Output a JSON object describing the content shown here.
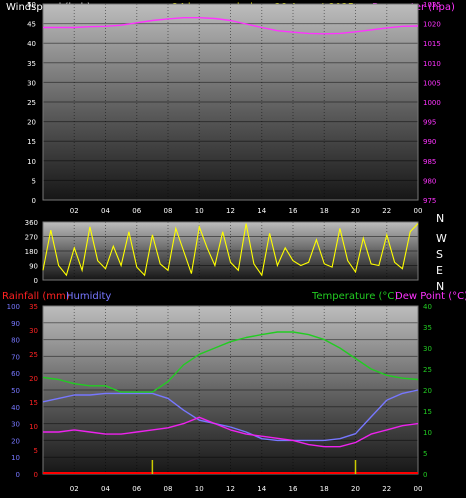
{
  "header": {
    "windspeed_label": "Windspeed (kph)",
    "title": "24 hour graph day : 28 August 2025",
    "barometer_label": "Barometer (hpa)"
  },
  "lower_header": {
    "rainfall_label": "Rainfall (mm)",
    "humidity_label": "Humidity",
    "temperature_label": "Temperature (°C)",
    "dewpoint_label": "Dew Point (°C)"
  },
  "compass": [
    "N",
    "W",
    "S",
    "E",
    "N"
  ],
  "colors": {
    "windspeed": "#ffffff",
    "barometer": "#ff33ff",
    "direction": "#ffff00",
    "rainfall": "#ff0000",
    "humidity": "#7777ff",
    "temperature": "#22cc22",
    "dewpoint": "#ee22ee",
    "rain_tick": "#cccc00"
  },
  "chart_data": [
    {
      "type": "line",
      "title": "24 hour graph day : 28 August 2025",
      "x_ticks": [
        "02",
        "04",
        "06",
        "08",
        "10",
        "12",
        "14",
        "16",
        "18",
        "20",
        "22",
        "00"
      ],
      "y_left": {
        "label": "Windspeed (kph)",
        "range": [
          0,
          50
        ],
        "ticks": [
          "0",
          "5",
          "10",
          "15",
          "20",
          "25",
          "30",
          "35",
          "40",
          "45",
          "50"
        ]
      },
      "y_right": {
        "label": "Barometer (hpa)",
        "range": [
          975,
          1025
        ],
        "ticks": [
          "975",
          "980",
          "985",
          "990",
          "995",
          "1000",
          "1005",
          "1010",
          "1015",
          "1020",
          "1025"
        ]
      },
      "series": [
        {
          "name": "Barometer (hpa)",
          "axis": "right",
          "x": [
            0,
            1,
            2,
            3,
            4,
            5,
            6,
            7,
            8,
            9,
            10,
            11,
            12,
            13,
            14,
            15,
            16,
            17,
            18,
            19,
            20,
            21,
            22,
            23,
            24
          ],
          "values": [
            1019,
            1019,
            1019,
            1019.2,
            1019.3,
            1019.6,
            1020.2,
            1020.8,
            1021.2,
            1021.5,
            1021.5,
            1021.3,
            1020.8,
            1019.9,
            1019,
            1018.2,
            1017.8,
            1017.5,
            1017.4,
            1017.5,
            1017.9,
            1018.4,
            1018.9,
            1019.3,
            1019.4
          ]
        }
      ]
    },
    {
      "type": "scatter",
      "title": "",
      "x_ticks": [
        "02",
        "04",
        "06",
        "08",
        "10",
        "12",
        "14",
        "16",
        "18",
        "20",
        "22",
        "00"
      ],
      "y_left": {
        "range": [
          0,
          360
        ],
        "ticks": [
          "0",
          "90",
          "180",
          "270",
          "360"
        ]
      },
      "series": [
        {
          "name": "",
          "x": [
            0,
            0.5,
            1,
            1.5,
            2,
            2.5,
            3,
            3.5,
            4,
            4.5,
            5,
            5.5,
            6,
            6.5,
            7,
            7.5,
            8,
            8.5,
            9,
            9.5,
            10,
            10.5,
            11,
            11.5,
            12,
            12.5,
            13,
            13.5,
            14,
            14.5,
            15,
            15.5,
            16,
            16.5,
            17,
            17.5,
            18,
            18.5,
            19,
            19.5,
            20,
            20.5,
            21,
            21.5,
            22,
            22.5,
            23,
            23.5,
            24
          ],
          "values": [
            60,
            310,
            90,
            30,
            200,
            60,
            330,
            120,
            70,
            210,
            90,
            300,
            80,
            30,
            280,
            100,
            60,
            320,
            180,
            40,
            330,
            200,
            90,
            300,
            110,
            60,
            350,
            100,
            30,
            290,
            90,
            200,
            120,
            90,
            110,
            250,
            100,
            80,
            320,
            120,
            50,
            260,
            100,
            90,
            280,
            110,
            70,
            300,
            350
          ]
        }
      ]
    },
    {
      "type": "line",
      "title": "",
      "x_ticks": [
        "02",
        "04",
        "06",
        "08",
        "10",
        "12",
        "14",
        "16",
        "18",
        "20",
        "22",
        "00"
      ],
      "y_left_outer": {
        "label": "Humidity",
        "range": [
          0,
          100
        ],
        "ticks": [
          "0",
          "10",
          "20",
          "30",
          "40",
          "50",
          "60",
          "70",
          "80",
          "90",
          "100"
        ]
      },
      "y_left_inner": {
        "label": "Rainfall (mm)",
        "range": [
          0,
          35
        ],
        "ticks": [
          "0",
          "5",
          "10",
          "15",
          "20",
          "25",
          "30",
          "35"
        ]
      },
      "y_right": {
        "label": "Temperature (°C)",
        "range": [
          0,
          40
        ],
        "ticks": [
          "0",
          "5",
          "10",
          "15",
          "20",
          "25",
          "30",
          "35",
          "40"
        ]
      },
      "series": [
        {
          "name": "Temperature (°C)",
          "axis": "right",
          "x": [
            0,
            1,
            2,
            3,
            4,
            5,
            6,
            7,
            8,
            9,
            10,
            11,
            12,
            13,
            14,
            15,
            16,
            17,
            18,
            19,
            20,
            21,
            22,
            23,
            24
          ],
          "values": [
            23,
            22.5,
            21.5,
            21,
            21,
            19.5,
            19.5,
            19.5,
            22,
            26,
            28.5,
            30,
            31.5,
            32.5,
            33.2,
            33.8,
            33.8,
            33.2,
            32,
            30,
            27.5,
            25,
            23.5,
            22.8,
            22.5
          ]
        },
        {
          "name": "Humidity",
          "axis": "left",
          "x": [
            0,
            1,
            2,
            3,
            4,
            5,
            6,
            7,
            8,
            9,
            10,
            11,
            12,
            13,
            14,
            15,
            16,
            17,
            18,
            19,
            20,
            21,
            22,
            23,
            24
          ],
          "values": [
            43,
            45,
            47,
            47,
            48,
            48,
            48,
            48,
            45,
            38,
            32,
            30,
            28,
            25,
            21,
            20,
            20,
            20,
            20,
            21,
            24,
            34,
            44,
            48,
            50
          ]
        },
        {
          "name": "Dew Point (°C)",
          "axis": "right",
          "x": [
            0,
            1,
            2,
            3,
            4,
            5,
            6,
            7,
            8,
            9,
            10,
            11,
            12,
            13,
            14,
            15,
            16,
            17,
            18,
            19,
            20,
            21,
            22,
            23,
            24
          ],
          "values": [
            10,
            10,
            10.5,
            10,
            9.5,
            9.5,
            10,
            10.5,
            11,
            12,
            13.5,
            12,
            10.5,
            9.5,
            9,
            8.5,
            8,
            7,
            6.5,
            6.5,
            7.5,
            9.5,
            10.5,
            11.5,
            12
          ]
        },
        {
          "name": "Rainfall (mm)",
          "axis": "left_inner",
          "x": [
            0,
            24
          ],
          "values": [
            0,
            0
          ]
        }
      ]
    }
  ]
}
